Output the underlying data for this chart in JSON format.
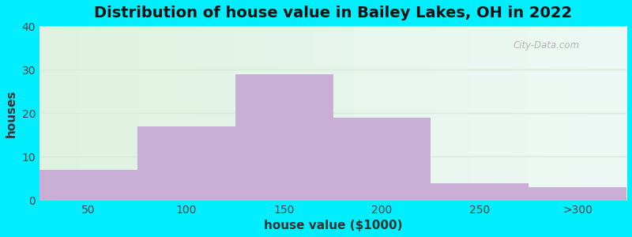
{
  "title": "Distribution of house value in Bailey Lakes, OH in 2022",
  "xlabel": "house value ($1000)",
  "ylabel": "houses",
  "bar_labels": [
    "50",
    "100",
    "150",
    "200",
    "250",
    ">300"
  ],
  "bar_values": [
    7,
    17,
    29,
    19,
    4,
    3
  ],
  "bar_color": "#c9aed6",
  "bar_edgecolor": "none",
  "ylim": [
    0,
    40
  ],
  "yticks": [
    0,
    10,
    20,
    30,
    40
  ],
  "background_outer": "#00eeff",
  "background_inner_left": "#dff2e0",
  "background_inner_right": "#eef8f5",
  "grid_color": "#d8ead8",
  "title_fontsize": 14,
  "axis_label_fontsize": 11,
  "tick_fontsize": 10,
  "watermark_text": "City-Data.com"
}
